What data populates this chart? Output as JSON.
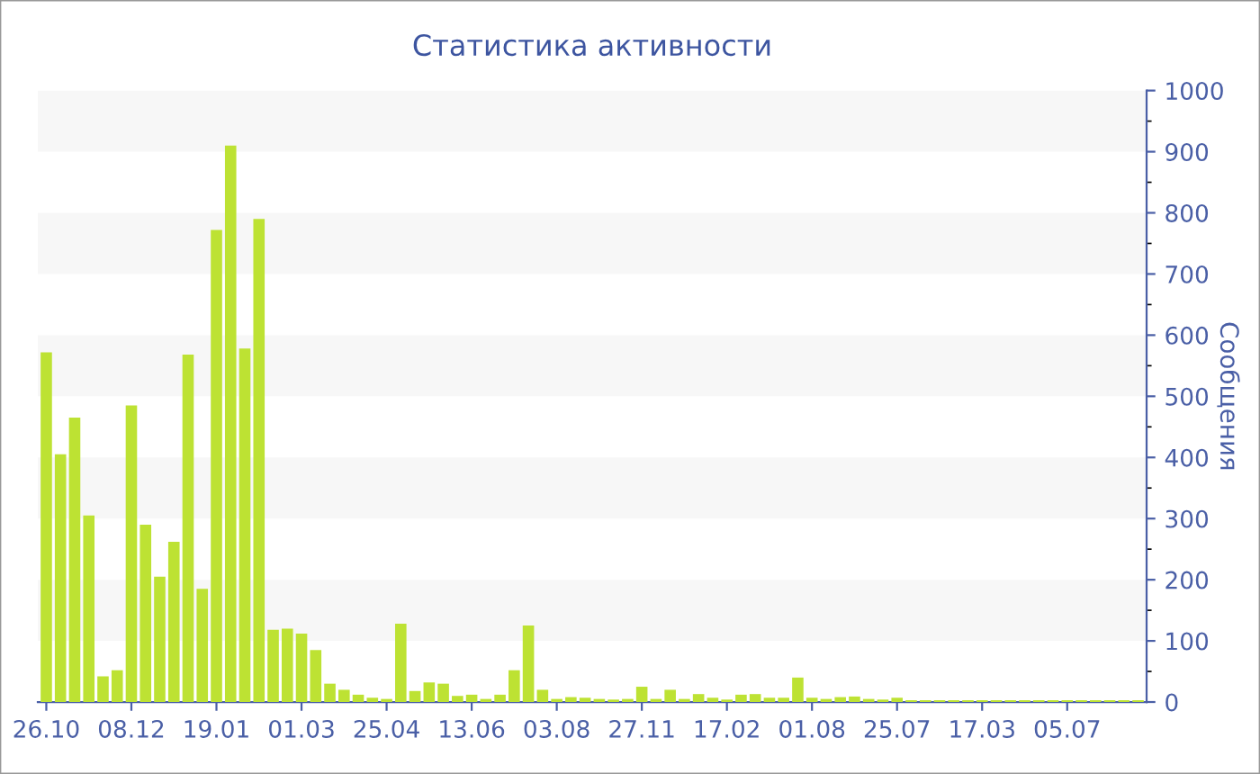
{
  "chart_data": {
    "type": "bar",
    "title": "Статистика активности",
    "ylabel": "Сообщения",
    "categories": [
      "26.10",
      null,
      null,
      null,
      null,
      null,
      "08.12",
      null,
      null,
      null,
      null,
      null,
      "19.01",
      null,
      null,
      null,
      null,
      null,
      "01.03",
      null,
      null,
      null,
      null,
      null,
      "25.04",
      null,
      null,
      null,
      null,
      null,
      "13.06",
      null,
      null,
      null,
      null,
      null,
      "03.08",
      null,
      null,
      null,
      null,
      null,
      "27.11",
      null,
      null,
      null,
      null,
      null,
      "17.02",
      null,
      null,
      null,
      null,
      null,
      "01.08",
      null,
      null,
      null,
      null,
      null,
      "25.07",
      null,
      null,
      null,
      null,
      null,
      "17.03",
      null,
      null,
      null,
      null,
      null,
      "05.07",
      null,
      null,
      null,
      null,
      null
    ],
    "values": [
      572,
      405,
      465,
      305,
      42,
      52,
      485,
      290,
      205,
      262,
      568,
      185,
      772,
      910,
      578,
      790,
      118,
      120,
      112,
      85,
      30,
      20,
      12,
      7,
      5,
      128,
      18,
      32,
      30,
      10,
      12,
      5,
      12,
      52,
      125,
      20,
      5,
      8,
      7,
      5,
      4,
      5,
      25,
      5,
      20,
      5,
      13,
      7,
      4,
      12,
      13,
      7,
      7,
      40,
      7,
      5,
      8,
      9,
      5,
      4,
      7,
      3,
      3,
      3,
      3,
      3,
      3,
      3,
      3,
      3,
      3,
      3,
      3,
      3,
      3,
      3,
      3,
      3
    ],
    "color": "#bde233",
    "ylim": [
      0,
      1000
    ],
    "yticks": [
      0,
      100,
      200,
      300,
      400,
      500,
      600,
      700,
      800,
      900,
      1000
    ],
    "bands": [
      {
        "axis": "y",
        "from": 100,
        "to": 200,
        "color": "#f7f7f7"
      },
      {
        "axis": "y",
        "from": 300,
        "to": 400,
        "color": "#f7f7f7"
      },
      {
        "axis": "y",
        "from": 500,
        "to": 600,
        "color": "#f7f7f7"
      },
      {
        "axis": "y",
        "from": 700,
        "to": 800,
        "color": "#f7f7f7"
      },
      {
        "axis": "y",
        "from": 900,
        "to": 1000,
        "color": "#f7f7f7"
      }
    ]
  }
}
